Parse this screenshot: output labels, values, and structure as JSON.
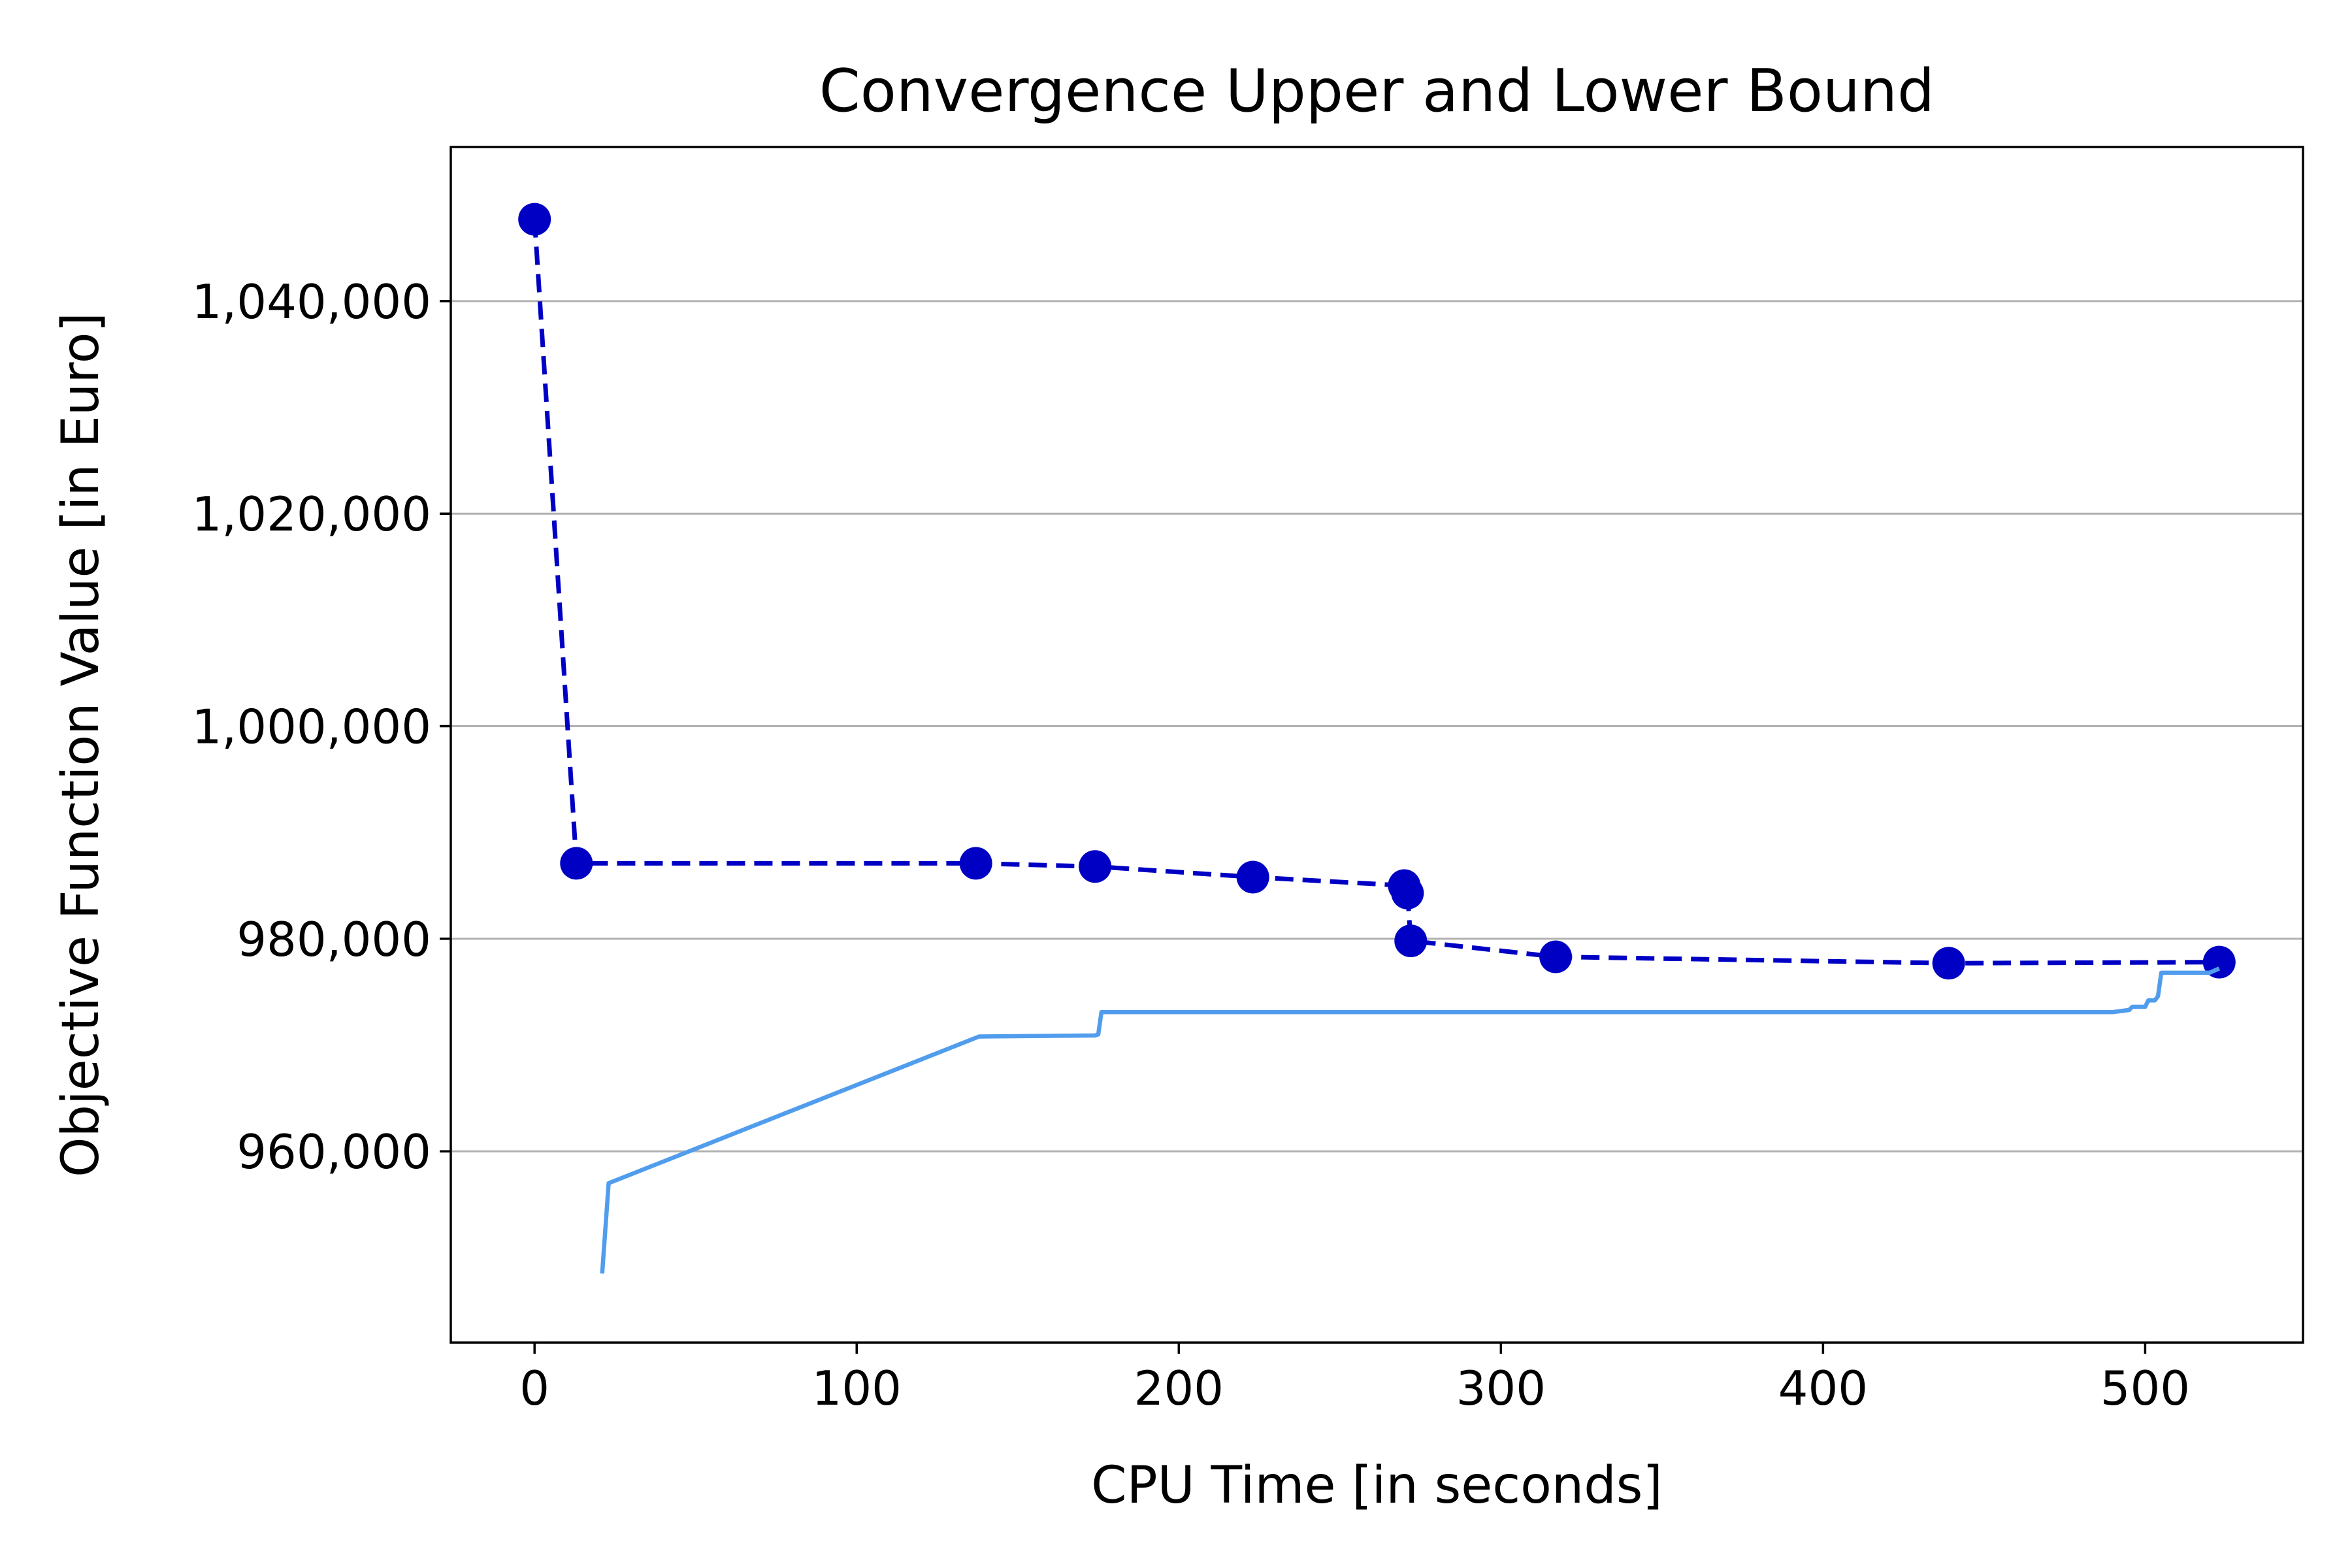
{
  "chart_data": {
    "type": "line",
    "title": "Convergence Upper and Lower Bound",
    "xlabel": "CPU Time [in seconds]",
    "ylabel": "Objective Function Value [in Euro]",
    "xlim": [
      -26,
      549
    ],
    "ylim": [
      942000,
      1054500
    ],
    "xticks": [
      0,
      100,
      200,
      300,
      400,
      500
    ],
    "xtick_labels": [
      "0",
      "100",
      "200",
      "300",
      "400",
      "500"
    ],
    "yticks": [
      960000,
      980000,
      1000000,
      1020000,
      1040000
    ],
    "ytick_labels": [
      "960,000",
      "980,000",
      "1,000,000",
      "1,020,000",
      "1,040,000"
    ],
    "grid": "y",
    "series": [
      {
        "style": "dashed-markers",
        "color": "#0000c4",
        "x": [
          0,
          13,
          137,
          174,
          223,
          270,
          271,
          272,
          317,
          439,
          523
        ],
        "y": [
          1047700,
          987100,
          987100,
          986800,
          985800,
          985000,
          984300,
          979800,
          978300,
          977700,
          977800
        ]
      },
      {
        "style": "solid",
        "color": "#519ded",
        "x": [
          21,
          23,
          138,
          174,
          175,
          176,
          490,
          495,
          496,
          500,
          501,
          503,
          504,
          505,
          520,
          523
        ],
        "y": [
          948500,
          957000,
          970800,
          970900,
          971000,
          973100,
          973100,
          973300,
          973600,
          973600,
          974200,
          974200,
          974600,
          976800,
          976800,
          977200
        ]
      }
    ]
  }
}
